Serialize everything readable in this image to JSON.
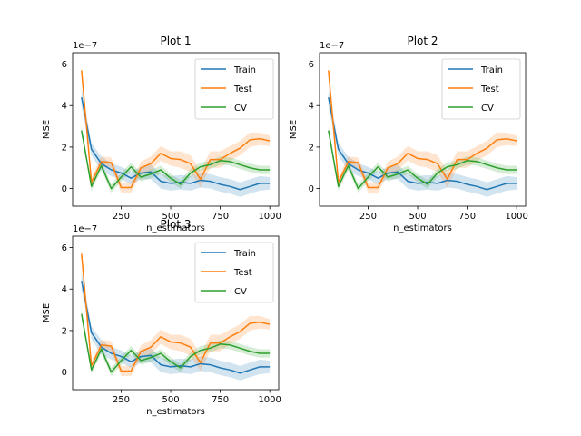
{
  "chart_data": [
    {
      "type": "line",
      "title": "Plot 1",
      "xlabel": "n_estimators",
      "ylabel": "MSE",
      "offset_text": "1e−7",
      "xlim": [
        5,
        1045
      ],
      "ylim": [
        -0.85,
        6.55
      ],
      "xticks": [
        250,
        500,
        750,
        1000
      ],
      "yticks": [
        0,
        2,
        4,
        6
      ],
      "legend": "top-right",
      "grid": false,
      "x": [
        50,
        100,
        150,
        200,
        250,
        300,
        350,
        400,
        450,
        500,
        550,
        600,
        650,
        700,
        750,
        800,
        850,
        900,
        950,
        1000
      ],
      "series": [
        {
          "name": "Train",
          "color": "#1f77b4",
          "values": [
            4.4,
            1.9,
            1.2,
            0.9,
            0.75,
            0.5,
            0.75,
            0.8,
            0.35,
            0.25,
            0.3,
            0.25,
            0.4,
            0.35,
            0.2,
            0.1,
            -0.05,
            0.1,
            0.25,
            0.25
          ],
          "band": [
            0.45,
            0.3,
            0.35,
            0.3,
            0.3,
            0.3,
            0.3,
            0.35,
            0.35,
            0.35,
            0.35,
            0.35,
            0.35,
            0.35,
            0.35,
            0.35,
            0.35,
            0.35,
            0.35,
            0.3
          ]
        },
        {
          "name": "Test",
          "color": "#ff7f0e",
          "values": [
            5.7,
            0.3,
            1.3,
            1.25,
            0.05,
            0.05,
            1.0,
            1.2,
            1.7,
            1.45,
            1.4,
            1.2,
            0.45,
            1.4,
            1.4,
            1.7,
            1.95,
            2.35,
            2.4,
            2.3
          ],
          "band": [
            0.25,
            0.25,
            0.25,
            0.25,
            0.25,
            0.25,
            0.3,
            0.35,
            0.35,
            0.35,
            0.4,
            0.4,
            0.4,
            0.4,
            0.4,
            0.35,
            0.35,
            0.35,
            0.3,
            0.25
          ]
        },
        {
          "name": "CV",
          "color": "#2ca02c",
          "values": [
            2.8,
            0.1,
            1.1,
            0.0,
            0.55,
            1.05,
            0.55,
            0.7,
            0.9,
            0.5,
            0.2,
            0.75,
            1.05,
            1.15,
            1.35,
            1.3,
            1.15,
            1.0,
            0.9,
            0.9
          ],
          "band": [
            0.2,
            0.2,
            0.2,
            0.2,
            0.2,
            0.2,
            0.2,
            0.2,
            0.2,
            0.2,
            0.2,
            0.2,
            0.2,
            0.2,
            0.2,
            0.2,
            0.2,
            0.2,
            0.2,
            0.2
          ]
        }
      ]
    },
    {
      "type": "line",
      "title": "Plot 2",
      "xlabel": "n_estimators",
      "ylabel": "MSE",
      "offset_text": "1e−7",
      "xlim": [
        5,
        1045
      ],
      "ylim": [
        -0.85,
        6.55
      ],
      "xticks": [
        250,
        500,
        750,
        1000
      ],
      "yticks": [
        0,
        2,
        4,
        6
      ],
      "legend": "top-right",
      "grid": false,
      "x": [
        50,
        100,
        150,
        200,
        250,
        300,
        350,
        400,
        450,
        500,
        550,
        600,
        650,
        700,
        750,
        800,
        850,
        900,
        950,
        1000
      ],
      "series": [
        {
          "name": "Train",
          "color": "#1f77b4",
          "values": [
            4.4,
            1.9,
            1.2,
            0.9,
            0.75,
            0.5,
            0.75,
            0.8,
            0.35,
            0.25,
            0.3,
            0.25,
            0.4,
            0.35,
            0.2,
            0.1,
            -0.05,
            0.1,
            0.25,
            0.25
          ],
          "band": [
            0.45,
            0.3,
            0.35,
            0.3,
            0.3,
            0.3,
            0.3,
            0.35,
            0.35,
            0.35,
            0.35,
            0.35,
            0.35,
            0.35,
            0.35,
            0.35,
            0.35,
            0.35,
            0.35,
            0.3
          ]
        },
        {
          "name": "Test",
          "color": "#ff7f0e",
          "values": [
            5.7,
            0.3,
            1.3,
            1.25,
            0.05,
            0.05,
            1.0,
            1.2,
            1.7,
            1.45,
            1.4,
            1.2,
            0.45,
            1.4,
            1.4,
            1.7,
            1.95,
            2.35,
            2.4,
            2.3
          ],
          "band": [
            0.25,
            0.25,
            0.25,
            0.25,
            0.25,
            0.25,
            0.3,
            0.35,
            0.35,
            0.35,
            0.4,
            0.4,
            0.4,
            0.4,
            0.4,
            0.35,
            0.35,
            0.35,
            0.3,
            0.25
          ]
        },
        {
          "name": "CV",
          "color": "#2ca02c",
          "values": [
            2.8,
            0.1,
            1.1,
            0.0,
            0.55,
            1.05,
            0.55,
            0.7,
            0.9,
            0.5,
            0.2,
            0.75,
            1.05,
            1.15,
            1.35,
            1.3,
            1.15,
            1.0,
            0.9,
            0.9
          ],
          "band": [
            0.2,
            0.2,
            0.2,
            0.2,
            0.2,
            0.2,
            0.2,
            0.2,
            0.2,
            0.2,
            0.2,
            0.2,
            0.2,
            0.2,
            0.2,
            0.2,
            0.2,
            0.2,
            0.2,
            0.2
          ]
        }
      ]
    },
    {
      "type": "line",
      "title": "Plot 3",
      "xlabel": "n_estimators",
      "ylabel": "MSE",
      "offset_text": "1e−7",
      "xlim": [
        5,
        1045
      ],
      "ylim": [
        -0.85,
        6.55
      ],
      "xticks": [
        250,
        500,
        750,
        1000
      ],
      "yticks": [
        0,
        2,
        4,
        6
      ],
      "legend": "top-right",
      "grid": false,
      "x": [
        50,
        100,
        150,
        200,
        250,
        300,
        350,
        400,
        450,
        500,
        550,
        600,
        650,
        700,
        750,
        800,
        850,
        900,
        950,
        1000
      ],
      "series": [
        {
          "name": "Train",
          "color": "#1f77b4",
          "values": [
            4.4,
            1.9,
            1.2,
            0.9,
            0.75,
            0.5,
            0.75,
            0.8,
            0.35,
            0.25,
            0.3,
            0.25,
            0.4,
            0.35,
            0.2,
            0.1,
            -0.05,
            0.1,
            0.25,
            0.25
          ],
          "band": [
            0.45,
            0.3,
            0.35,
            0.3,
            0.3,
            0.3,
            0.3,
            0.35,
            0.35,
            0.35,
            0.35,
            0.35,
            0.35,
            0.35,
            0.35,
            0.35,
            0.35,
            0.35,
            0.35,
            0.3
          ]
        },
        {
          "name": "Test",
          "color": "#ff7f0e",
          "values": [
            5.7,
            0.3,
            1.3,
            1.25,
            0.05,
            0.05,
            1.0,
            1.2,
            1.7,
            1.45,
            1.4,
            1.2,
            0.45,
            1.4,
            1.4,
            1.7,
            1.95,
            2.35,
            2.4,
            2.3
          ],
          "band": [
            0.25,
            0.25,
            0.25,
            0.25,
            0.25,
            0.25,
            0.3,
            0.35,
            0.35,
            0.35,
            0.4,
            0.4,
            0.4,
            0.4,
            0.4,
            0.35,
            0.35,
            0.35,
            0.3,
            0.25
          ]
        },
        {
          "name": "CV",
          "color": "#2ca02c",
          "values": [
            2.8,
            0.1,
            1.1,
            0.0,
            0.55,
            1.05,
            0.55,
            0.7,
            0.9,
            0.5,
            0.2,
            0.75,
            1.05,
            1.15,
            1.35,
            1.3,
            1.15,
            1.0,
            0.9,
            0.9
          ],
          "band": [
            0.2,
            0.2,
            0.2,
            0.2,
            0.2,
            0.2,
            0.2,
            0.2,
            0.2,
            0.2,
            0.2,
            0.2,
            0.2,
            0.2,
            0.2,
            0.2,
            0.2,
            0.2,
            0.2,
            0.2
          ]
        }
      ]
    }
  ]
}
